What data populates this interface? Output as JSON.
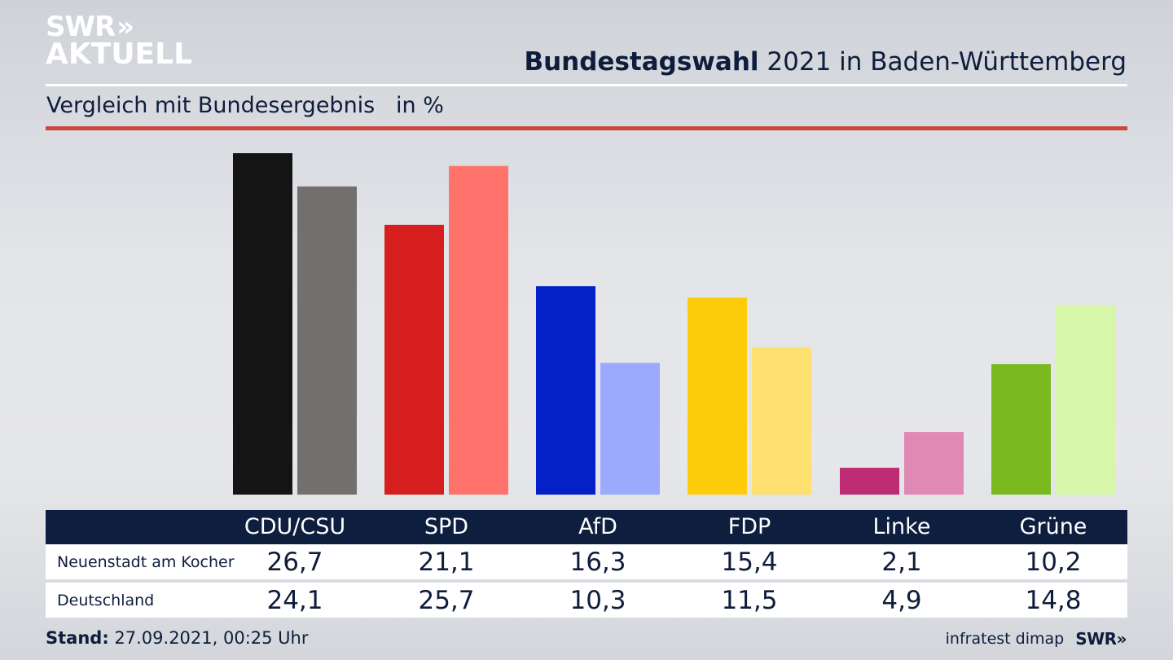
{
  "header": {
    "logo_line1": "SWR",
    "logo_chevrons": "»",
    "logo_line2": "AKTUELL",
    "title_bold": "Bundestagswahl",
    "title_rest": " 2021 in Baden-Württemberg",
    "subtitle": "Vergleich mit Bundesergebnis   in %"
  },
  "chart_data": {
    "type": "bar",
    "title": "Bundestagswahl 2021 in Baden-Württemberg",
    "subtitle": "Vergleich mit Bundesergebnis in %",
    "categories": [
      "CDU/CSU",
      "SPD",
      "AfD",
      "FDP",
      "Linke",
      "Grüne"
    ],
    "series": [
      {
        "name": "Neuenstadt am Kocher",
        "values": [
          26.7,
          21.1,
          16.3,
          15.4,
          2.1,
          10.2
        ],
        "colors": [
          "#141414",
          "#d61e1e",
          "#0321c6",
          "#fecc0a",
          "#be2d73",
          "#7aba1e"
        ]
      },
      {
        "name": "Deutschland",
        "values": [
          24.1,
          25.7,
          10.3,
          11.5,
          4.9,
          14.8
        ],
        "colors": [
          "#71706e",
          "#ff736c",
          "#9caafd",
          "#fde06f",
          "#e089b4",
          "#d6f6a9"
        ]
      }
    ],
    "ylim": [
      0,
      26.7
    ],
    "grid": false,
    "legend": "table-below",
    "xlabel": "",
    "ylabel": "in %"
  },
  "table": {
    "headers": [
      "CDU/CSU",
      "SPD",
      "AfD",
      "FDP",
      "Linke",
      "Grüne"
    ],
    "rows": [
      {
        "label": "Neuenstadt am Kocher",
        "values": [
          "26,7",
          "21,1",
          "16,3",
          "15,4",
          "2,1",
          "10,2"
        ]
      },
      {
        "label": "Deutschland",
        "values": [
          "24,1",
          "25,7",
          "10,3",
          "11,5",
          "4,9",
          "14,8"
        ]
      }
    ]
  },
  "footer": {
    "stand_label": "Stand:",
    "stand_value": " 27.09.2021, 00:25 Uhr",
    "source": "infratest dimap",
    "brand": "SWR»"
  }
}
